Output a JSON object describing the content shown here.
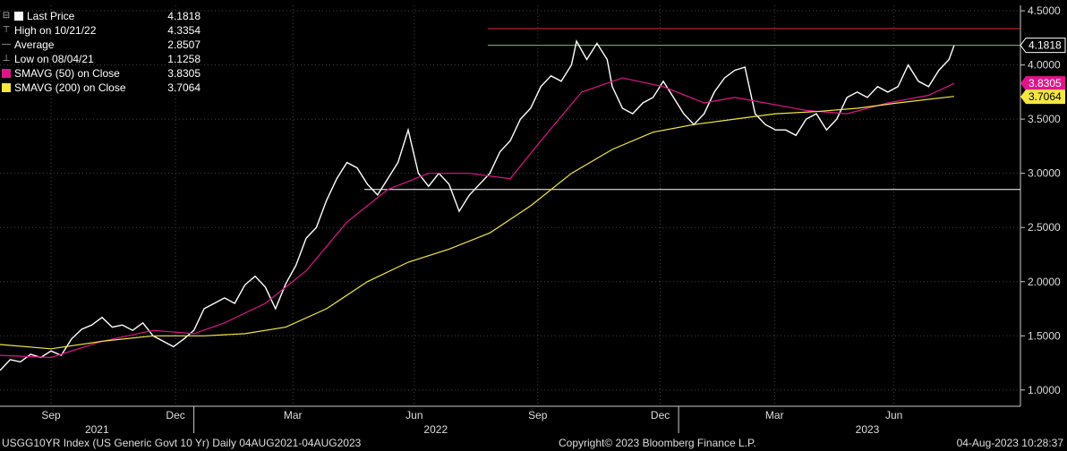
{
  "legend": {
    "last_price": {
      "label": "Last Price",
      "value": "4.1818",
      "color": "#ffffff"
    },
    "high": {
      "label": "High on 10/21/22",
      "value": "4.3354",
      "icon": "high-marker-icon"
    },
    "average": {
      "label": "Average",
      "value": "2.8507",
      "icon": "average-line-icon"
    },
    "low": {
      "label": "Low on 08/04/21",
      "value": "1.1258",
      "icon": "low-marker-icon"
    },
    "sma50": {
      "label": "SMAVG (50)  on Close",
      "value": "3.8305",
      "color": "#e0158a"
    },
    "sma200": {
      "label": "SMAVG (200)  on Close",
      "value": "3.7064",
      "color": "#f5e642"
    }
  },
  "tags": {
    "last": "4.1818",
    "sma50": "3.8305",
    "sma200": "3.7064"
  },
  "footer": {
    "left": "USGG10YR Index (US Generic Govt 10 Yr)  Daily 04AUG2021-04AUG2023",
    "center": "Copyright© 2023 Bloomberg Finance L.P.",
    "right": "04-Aug-2023 10:28:37"
  },
  "chart_data": {
    "type": "line",
    "ylim": [
      0.85,
      4.55
    ],
    "yticks": [
      "1.0000",
      "1.5000",
      "2.0000",
      "2.5000",
      "3.0000",
      "3.5000",
      "4.0000",
      "4.5000"
    ],
    "month_labels": [
      {
        "label": "Sep",
        "t": 0.05
      },
      {
        "label": "Dec",
        "t": 0.172
      },
      {
        "label": "Mar",
        "t": 0.287
      },
      {
        "label": "Jun",
        "t": 0.406
      },
      {
        "label": "Sep",
        "t": 0.527
      },
      {
        "label": "Dec",
        "t": 0.647
      },
      {
        "label": "Mar",
        "t": 0.759
      },
      {
        "label": "Jun",
        "t": 0.876
      }
    ],
    "year_labels": [
      {
        "label": "2021",
        "t": 0.095
      },
      {
        "label": "2022",
        "t": 0.427
      },
      {
        "label": "2023",
        "t": 0.85
      }
    ],
    "year_dividers": [
      0.19,
      0.665
    ],
    "reference_lines": [
      {
        "name": "high",
        "value": 4.3354,
        "color": "#e0303a"
      },
      {
        "name": "last",
        "value": 4.1818,
        "color": "#5fd35f"
      },
      {
        "name": "average",
        "value": 2.8507,
        "color": "#ffffff"
      }
    ],
    "series": [
      {
        "name": "Last Price",
        "color": "#ffffff",
        "points": [
          [
            0,
            1.18
          ],
          [
            0.01,
            1.28
          ],
          [
            0.02,
            1.26
          ],
          [
            0.03,
            1.33
          ],
          [
            0.04,
            1.3
          ],
          [
            0.05,
            1.36
          ],
          [
            0.06,
            1.32
          ],
          [
            0.07,
            1.47
          ],
          [
            0.08,
            1.56
          ],
          [
            0.09,
            1.6
          ],
          [
            0.1,
            1.67
          ],
          [
            0.11,
            1.58
          ],
          [
            0.12,
            1.6
          ],
          [
            0.13,
            1.55
          ],
          [
            0.14,
            1.62
          ],
          [
            0.15,
            1.5
          ],
          [
            0.16,
            1.45
          ],
          [
            0.17,
            1.4
          ],
          [
            0.18,
            1.47
          ],
          [
            0.19,
            1.55
          ],
          [
            0.2,
            1.75
          ],
          [
            0.21,
            1.8
          ],
          [
            0.22,
            1.85
          ],
          [
            0.23,
            1.8
          ],
          [
            0.24,
            1.97
          ],
          [
            0.25,
            2.05
          ],
          [
            0.26,
            1.95
          ],
          [
            0.27,
            1.75
          ],
          [
            0.28,
            1.98
          ],
          [
            0.29,
            2.15
          ],
          [
            0.3,
            2.4
          ],
          [
            0.31,
            2.5
          ],
          [
            0.32,
            2.75
          ],
          [
            0.33,
            2.95
          ],
          [
            0.34,
            3.1
          ],
          [
            0.35,
            3.05
          ],
          [
            0.36,
            2.9
          ],
          [
            0.37,
            2.8
          ],
          [
            0.38,
            2.95
          ],
          [
            0.39,
            3.1
          ],
          [
            0.4,
            3.4
          ],
          [
            0.41,
            3.0
          ],
          [
            0.42,
            2.88
          ],
          [
            0.43,
            3.0
          ],
          [
            0.44,
            2.9
          ],
          [
            0.45,
            2.65
          ],
          [
            0.46,
            2.8
          ],
          [
            0.47,
            2.9
          ],
          [
            0.48,
            3.0
          ],
          [
            0.49,
            3.2
          ],
          [
            0.5,
            3.3
          ],
          [
            0.51,
            3.5
          ],
          [
            0.52,
            3.6
          ],
          [
            0.53,
            3.8
          ],
          [
            0.54,
            3.9
          ],
          [
            0.55,
            3.85
          ],
          [
            0.56,
            4.0
          ],
          [
            0.565,
            4.22
          ],
          [
            0.575,
            4.05
          ],
          [
            0.585,
            4.2
          ],
          [
            0.595,
            4.05
          ],
          [
            0.6,
            3.8
          ],
          [
            0.61,
            3.6
          ],
          [
            0.62,
            3.55
          ],
          [
            0.63,
            3.65
          ],
          [
            0.64,
            3.7
          ],
          [
            0.65,
            3.85
          ],
          [
            0.66,
            3.7
          ],
          [
            0.67,
            3.55
          ],
          [
            0.68,
            3.45
          ],
          [
            0.69,
            3.55
          ],
          [
            0.7,
            3.75
          ],
          [
            0.71,
            3.88
          ],
          [
            0.72,
            3.95
          ],
          [
            0.73,
            3.98
          ],
          [
            0.74,
            3.55
          ],
          [
            0.75,
            3.45
          ],
          [
            0.76,
            3.4
          ],
          [
            0.77,
            3.4
          ],
          [
            0.78,
            3.35
          ],
          [
            0.79,
            3.5
          ],
          [
            0.8,
            3.55
          ],
          [
            0.81,
            3.4
          ],
          [
            0.82,
            3.5
          ],
          [
            0.83,
            3.7
          ],
          [
            0.84,
            3.75
          ],
          [
            0.85,
            3.7
          ],
          [
            0.86,
            3.8
          ],
          [
            0.87,
            3.75
          ],
          [
            0.88,
            3.8
          ],
          [
            0.89,
            4.0
          ],
          [
            0.9,
            3.85
          ],
          [
            0.91,
            3.8
          ],
          [
            0.92,
            3.95
          ],
          [
            0.93,
            4.05
          ],
          [
            0.935,
            4.18
          ]
        ]
      },
      {
        "name": "SMAVG (50)  on Close",
        "color": "#e0158a",
        "points": [
          [
            0,
            1.32
          ],
          [
            0.05,
            1.3
          ],
          [
            0.1,
            1.45
          ],
          [
            0.15,
            1.55
          ],
          [
            0.19,
            1.52
          ],
          [
            0.22,
            1.62
          ],
          [
            0.26,
            1.8
          ],
          [
            0.3,
            2.1
          ],
          [
            0.34,
            2.55
          ],
          [
            0.38,
            2.85
          ],
          [
            0.42,
            3.0
          ],
          [
            0.46,
            3.0
          ],
          [
            0.5,
            2.95
          ],
          [
            0.53,
            3.3
          ],
          [
            0.57,
            3.75
          ],
          [
            0.61,
            3.88
          ],
          [
            0.65,
            3.8
          ],
          [
            0.69,
            3.65
          ],
          [
            0.72,
            3.7
          ],
          [
            0.75,
            3.65
          ],
          [
            0.79,
            3.58
          ],
          [
            0.83,
            3.55
          ],
          [
            0.87,
            3.65
          ],
          [
            0.91,
            3.72
          ],
          [
            0.935,
            3.83
          ]
        ]
      },
      {
        "name": "SMAVG (200)  on Close",
        "color": "#f5e642",
        "points": [
          [
            0,
            1.42
          ],
          [
            0.05,
            1.38
          ],
          [
            0.1,
            1.45
          ],
          [
            0.15,
            1.5
          ],
          [
            0.2,
            1.5
          ],
          [
            0.24,
            1.52
          ],
          [
            0.28,
            1.58
          ],
          [
            0.32,
            1.75
          ],
          [
            0.36,
            2.0
          ],
          [
            0.4,
            2.18
          ],
          [
            0.44,
            2.3
          ],
          [
            0.48,
            2.45
          ],
          [
            0.52,
            2.7
          ],
          [
            0.56,
            3.0
          ],
          [
            0.6,
            3.22
          ],
          [
            0.64,
            3.38
          ],
          [
            0.68,
            3.45
          ],
          [
            0.72,
            3.5
          ],
          [
            0.76,
            3.55
          ],
          [
            0.8,
            3.57
          ],
          [
            0.84,
            3.6
          ],
          [
            0.88,
            3.65
          ],
          [
            0.935,
            3.71
          ]
        ]
      }
    ]
  }
}
